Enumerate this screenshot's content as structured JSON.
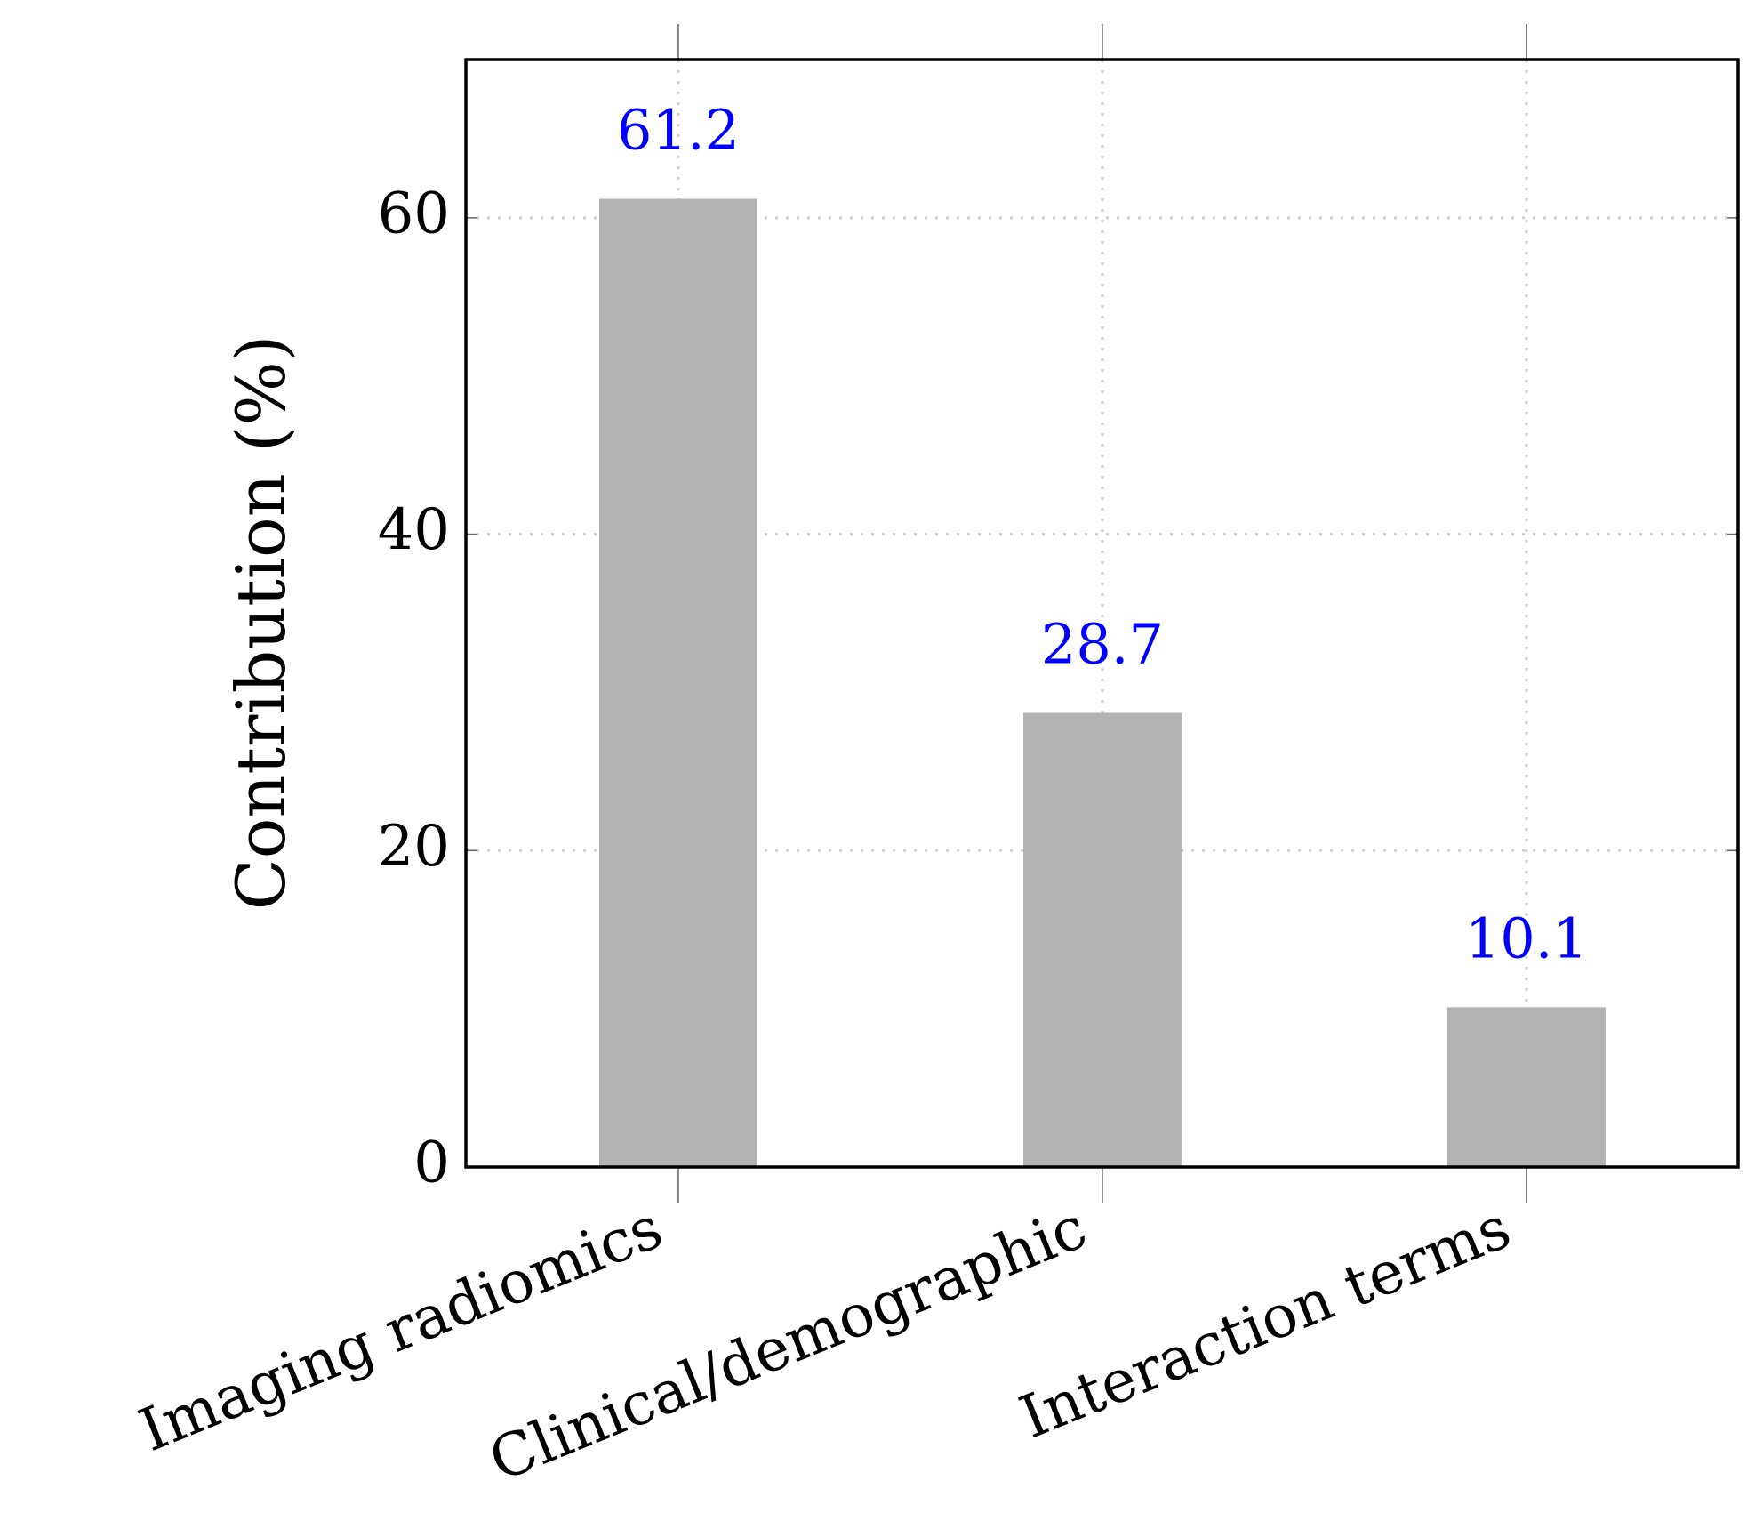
{
  "chart_data": {
    "type": "bar",
    "ylabel": "Contribution (%)",
    "categories": [
      "Imaging radiomics",
      "Clinical/demographic",
      "Interaction terms"
    ],
    "values": [
      61.2,
      28.7,
      10.1
    ],
    "color": "#b3b3b3",
    "value_label_color": "#0000ff",
    "ylim": [
      0,
      70
    ],
    "yticks": [
      0,
      20,
      40,
      60
    ],
    "grid": true
  }
}
